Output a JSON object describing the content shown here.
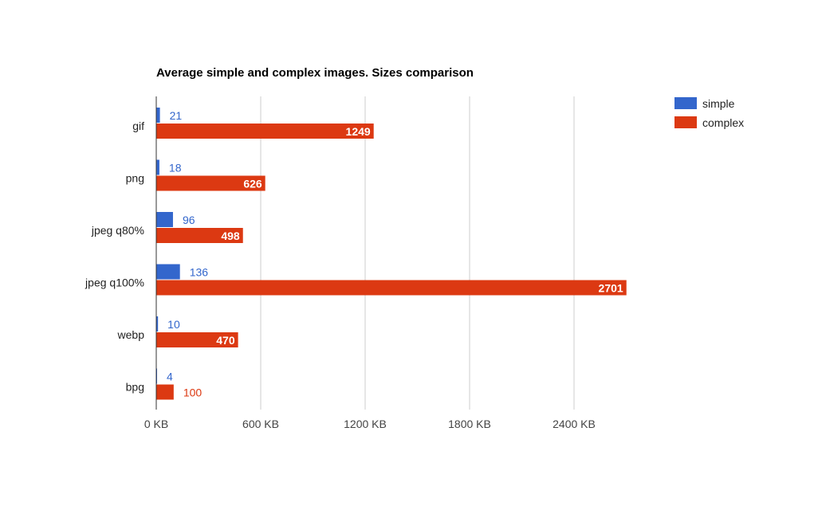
{
  "chart_data": {
    "type": "bar",
    "orientation": "horizontal",
    "title": "Average simple and complex images. Sizes comparison",
    "xlabel": "",
    "ylabel": "",
    "categories": [
      "gif",
      "png",
      "jpeg q80%",
      "jpeg q100%",
      "webp",
      "bpg"
    ],
    "series": [
      {
        "name": "simple",
        "color": "#3366cc",
        "values": [
          21,
          18,
          96,
          136,
          10,
          4
        ]
      },
      {
        "name": "complex",
        "color": "#dc3912",
        "values": [
          1249,
          626,
          498,
          2701,
          470,
          100
        ]
      }
    ],
    "xlim": [
      0,
      3000
    ],
    "x_ticks": [
      0,
      600,
      1200,
      1800,
      2400
    ],
    "x_tick_labels": [
      "0 KB",
      "600 KB",
      "1200 KB",
      "1800 KB",
      "2400 KB"
    ],
    "grid": true,
    "legend_position": "right"
  }
}
